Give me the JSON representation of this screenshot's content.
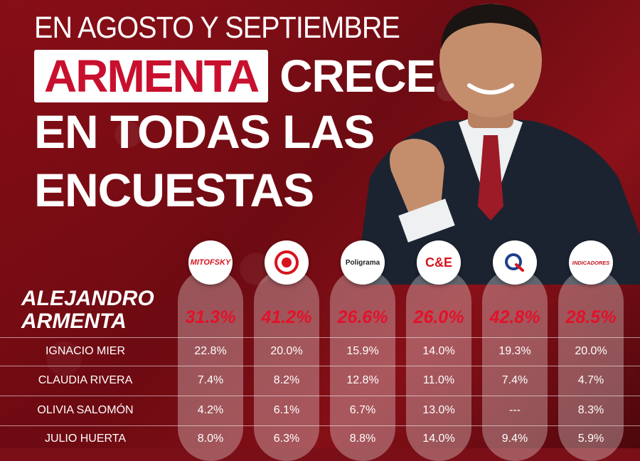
{
  "headline": {
    "line1": "EN AGOSTO Y SEPTIEMBRE",
    "highlight": "ARMENTA",
    "line2_rest": "CRECE",
    "line3": "EN TODAS LAS",
    "line4": "ENCUESTAS"
  },
  "pollsters": [
    {
      "name": "MITOFSKY",
      "logo_text": "MITOFSKY",
      "color": "#d7141e"
    },
    {
      "name": "target-logo",
      "logo_text": "",
      "color": "#d7141e"
    },
    {
      "name": "Poligrama",
      "logo_text": "Poligrama",
      "color": "#222222"
    },
    {
      "name": "C&E",
      "logo_text": "C&E",
      "color": "#d7141e"
    },
    {
      "name": "q-logo",
      "logo_text": "",
      "color": "#1e3f8c"
    },
    {
      "name": "INDICADORES",
      "logo_text": "INDICADORES",
      "color": "#c4141e"
    }
  ],
  "lead": {
    "name_line1": "ALEJANDRO",
    "name_line2": "ARMENTA",
    "values": [
      "31.3%",
      "41.2%",
      "26.6%",
      "26.0%",
      "42.8%",
      "28.5%"
    ]
  },
  "rows": [
    {
      "name": "IGNACIO MIER",
      "values": [
        "22.8%",
        "20.0%",
        "15.9%",
        "14.0%",
        "19.3%",
        "20.0%"
      ]
    },
    {
      "name": "CLAUDIA RIVERA",
      "values": [
        "7.4%",
        "8.2%",
        "12.8%",
        "11.0%",
        "7.4%",
        "4.7%"
      ]
    },
    {
      "name": "OLIVIA SALOMÓN",
      "values": [
        "4.2%",
        "6.1%",
        "6.7%",
        "13.0%",
        "---",
        "8.3%"
      ]
    },
    {
      "name": "JULIO HUERTA",
      "values": [
        "8.0%",
        "6.3%",
        "8.8%",
        "14.0%",
        "9.4%",
        "5.9%"
      ]
    }
  ],
  "colors": {
    "accent_red": "#e3112a",
    "background": "#7a0f17"
  }
}
